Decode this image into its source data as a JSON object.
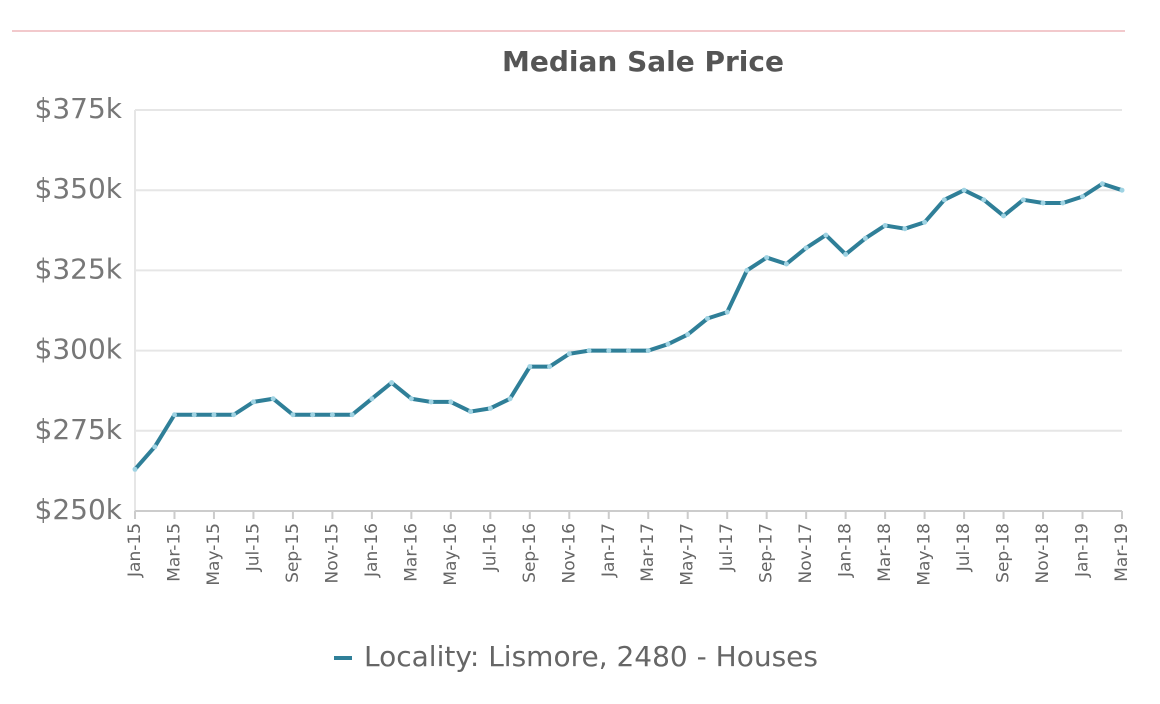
{
  "chart_data": {
    "type": "line",
    "title": "Median Sale Price",
    "categories": [
      "Jan-15",
      null,
      "Mar-15",
      null,
      "May-15",
      null,
      "Jul-15",
      null,
      "Sep-15",
      null,
      "Nov-15",
      null,
      "Jan-16",
      null,
      "Mar-16",
      null,
      "May-16",
      null,
      "Jul-16",
      null,
      "Sep-16",
      null,
      "Nov-16",
      null,
      "Jan-17",
      null,
      "Mar-17",
      null,
      "May-17",
      null,
      "Jul-17",
      null,
      "Sep-17",
      null,
      "Nov-17",
      null,
      "Jan-18",
      null,
      "Mar-18",
      null,
      "May-18",
      null,
      "Jul-18",
      null,
      "Sep-18",
      null,
      "Nov-18",
      null,
      "Jan-19",
      null,
      "Mar-19"
    ],
    "series": [
      {
        "name": "Locality: Lismore, 2480 - Houses",
        "color": "#2f7f98",
        "values": [
          263000,
          270000,
          280000,
          280000,
          280000,
          280000,
          284000,
          285000,
          280000,
          280000,
          280000,
          280000,
          285000,
          290000,
          285000,
          284000,
          284000,
          281000,
          282000,
          285000,
          295000,
          295000,
          299000,
          300000,
          300000,
          300000,
          300000,
          302000,
          305000,
          310000,
          312000,
          325000,
          329000,
          327000,
          332000,
          336000,
          330000,
          335000,
          339000,
          338000,
          340000,
          347000,
          350000,
          347000,
          342000,
          347000,
          346000,
          346000,
          348000,
          352000,
          350000
        ]
      }
    ],
    "ylim": [
      250000,
      375000
    ],
    "yticks": [
      {
        "value": 250000,
        "label": "$250k"
      },
      {
        "value": 275000,
        "label": "$275k"
      },
      {
        "value": 300000,
        "label": "$300k"
      },
      {
        "value": 325000,
        "label": "$325k"
      },
      {
        "value": 350000,
        "label": "$350k"
      },
      {
        "value": 375000,
        "label": "$375k"
      }
    ],
    "grid": true,
    "legend": "bottom"
  }
}
